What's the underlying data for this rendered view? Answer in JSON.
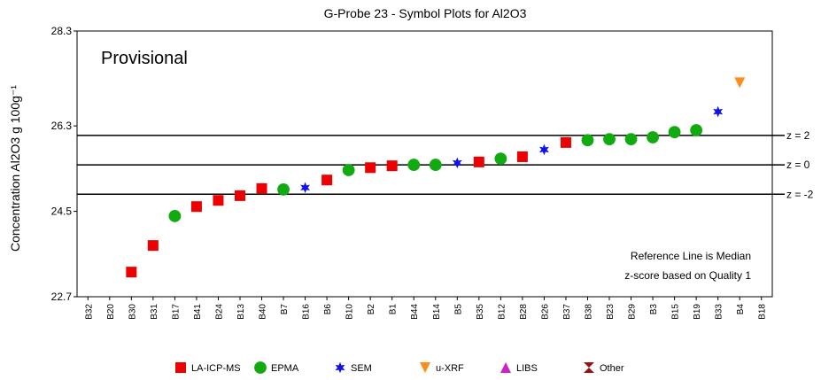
{
  "chart_data": {
    "type": "scatter",
    "title": "G-Probe 23 - Symbol Plots for Al2O3",
    "y_label": "Concentration Al2O3 g 100g⁻¹",
    "annotations": [
      "Provisional",
      "Reference Line is Median",
      "z-score based on Quality 1"
    ],
    "categories": [
      "B32",
      "B20",
      "B30",
      "B31",
      "B17",
      "B41",
      "B24",
      "B13",
      "B40",
      "B7",
      "B16",
      "B6",
      "B10",
      "B2",
      "B1",
      "B44",
      "B14",
      "B5",
      "B35",
      "B12",
      "B28",
      "B26",
      "B37",
      "B38",
      "B23",
      "B29",
      "B3",
      "B15",
      "B19",
      "B33",
      "B4",
      "B18"
    ],
    "ylim": [
      22.7,
      28.3
    ],
    "yticks": [
      22.7,
      24.5,
      26.3,
      28.3
    ],
    "reference_lines": [
      {
        "label": "z = 2",
        "value": 26.1
      },
      {
        "label": "z = 0",
        "value": 25.48
      },
      {
        "label": "z = -2",
        "value": 24.86
      }
    ],
    "series": [
      {
        "name": "LA-ICP-MS",
        "color": "#ee0000",
        "marker": "square",
        "values": [
          null,
          null,
          23.22,
          23.78,
          null,
          24.6,
          24.73,
          24.83,
          24.98,
          null,
          null,
          25.16,
          null,
          25.42,
          25.46,
          null,
          null,
          null,
          25.54,
          null,
          25.65,
          null,
          25.95,
          null,
          null,
          null,
          null,
          null,
          null,
          null,
          null,
          null
        ]
      },
      {
        "name": "EPMA",
        "color": "#11aa11",
        "marker": "circle",
        "values": [
          null,
          null,
          null,
          null,
          24.4,
          null,
          null,
          null,
          null,
          24.96,
          null,
          null,
          25.37,
          null,
          null,
          25.48,
          25.48,
          null,
          null,
          25.61,
          null,
          null,
          null,
          26.0,
          26.02,
          26.02,
          26.06,
          26.17,
          26.21,
          null,
          null,
          null
        ]
      },
      {
        "name": "SEM",
        "color": "#1111ee",
        "marker": "star",
        "values": [
          null,
          null,
          null,
          null,
          null,
          null,
          null,
          null,
          null,
          null,
          25.0,
          null,
          null,
          null,
          null,
          null,
          null,
          25.52,
          null,
          null,
          null,
          25.8,
          null,
          null,
          null,
          null,
          null,
          null,
          null,
          26.6,
          null,
          null
        ]
      },
      {
        "name": "u-XRF",
        "color": "#ff8c1a",
        "marker": "triangle-down",
        "values": [
          null,
          null,
          null,
          null,
          null,
          null,
          null,
          null,
          null,
          null,
          null,
          null,
          null,
          null,
          null,
          null,
          null,
          null,
          null,
          null,
          null,
          null,
          null,
          null,
          null,
          null,
          null,
          null,
          null,
          null,
          27.21,
          null
        ]
      },
      {
        "name": "LIBS",
        "color": "#cc22cc",
        "marker": "triangle-up",
        "values": [
          null,
          null,
          null,
          null,
          null,
          null,
          null,
          null,
          null,
          null,
          null,
          null,
          null,
          null,
          null,
          null,
          null,
          null,
          null,
          null,
          null,
          null,
          null,
          null,
          null,
          null,
          null,
          null,
          null,
          null,
          null,
          null
        ]
      },
      {
        "name": "Other",
        "color": "#991111",
        "marker": "hourglass",
        "values": [
          null,
          null,
          null,
          null,
          null,
          null,
          null,
          null,
          null,
          null,
          null,
          null,
          null,
          null,
          null,
          null,
          null,
          null,
          null,
          null,
          null,
          null,
          null,
          null,
          null,
          null,
          null,
          null,
          null,
          null,
          null,
          null
        ]
      }
    ]
  }
}
